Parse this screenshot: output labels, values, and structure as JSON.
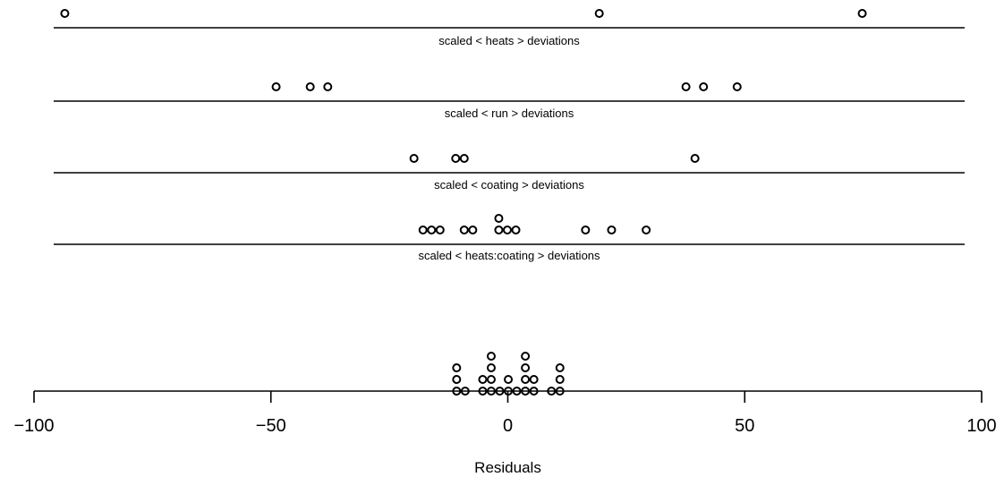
{
  "chart_data": {
    "type": "scatter",
    "xlim": [
      -100,
      100
    ],
    "x_ticks": [
      -100,
      -50,
      0,
      50,
      100
    ],
    "x_tick_labels": [
      "−100",
      "−50",
      "0",
      "50",
      "100"
    ],
    "xlabel": "Residuals",
    "grid": false,
    "strips": [
      {
        "label": "scaled < heats > deviations",
        "values": [
          -93.5,
          19.3,
          74.8
        ]
      },
      {
        "label": "scaled < run > deviations",
        "values": [
          -48.9,
          -41.7,
          -38.0,
          37.6,
          41.3,
          48.4
        ]
      },
      {
        "label": "scaled < coating > deviations",
        "values": [
          -19.8,
          -11.0,
          -9.2,
          39.5
        ]
      },
      {
        "label": "scaled < heats:coating > deviations",
        "values": [
          -17.9,
          -16.1,
          -14.3,
          -9.2,
          -7.4,
          -1.9,
          -1.9,
          -0.1,
          1.7,
          16.4,
          21.9,
          29.2
        ]
      }
    ],
    "residuals": {
      "values": [
        -10.8,
        -10.8,
        -10.8,
        -9.0,
        -5.3,
        -5.3,
        -3.5,
        -3.5,
        -3.5,
        -3.5,
        -1.7,
        0.1,
        0.1,
        1.9,
        3.7,
        3.7,
        3.7,
        3.7,
        5.5,
        5.5,
        9.2,
        11.0,
        11.0,
        11.0
      ]
    }
  }
}
